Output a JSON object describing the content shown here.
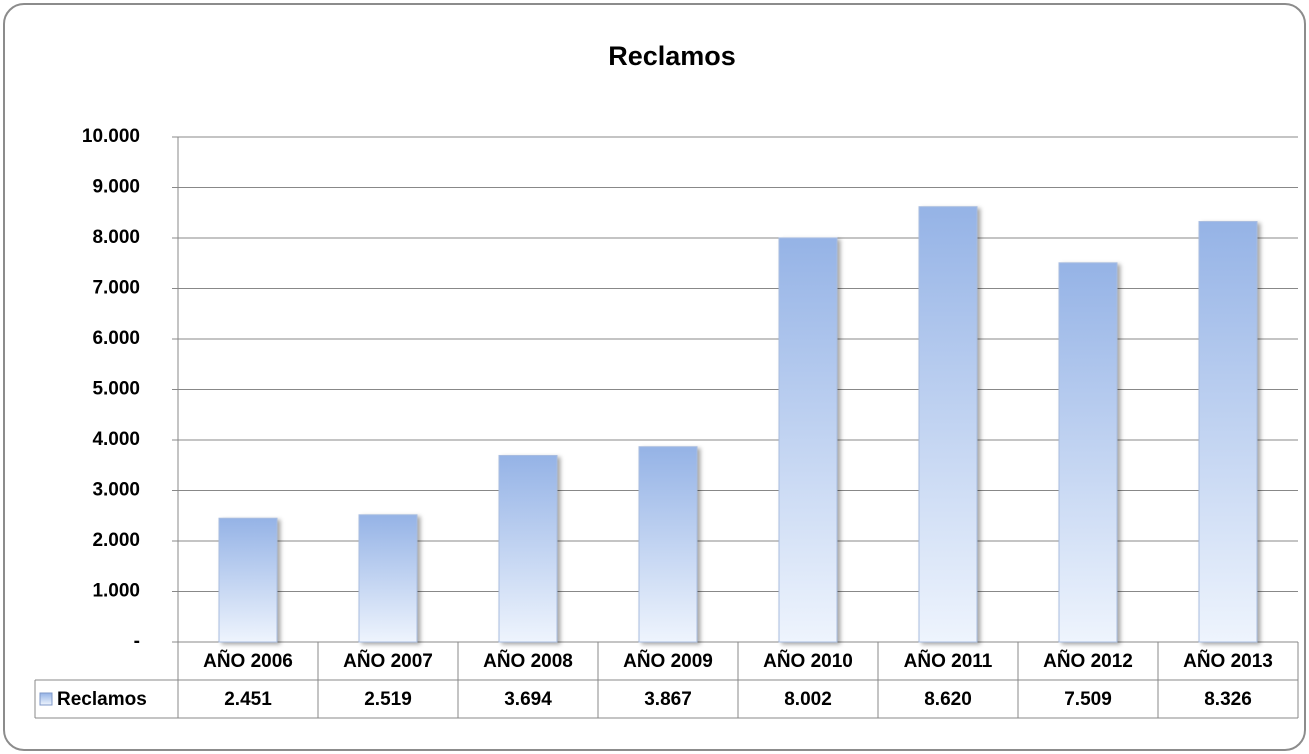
{
  "chart_data": {
    "type": "bar",
    "title": "Reclamos",
    "categories": [
      "AÑO 2006",
      "AÑO 2007",
      "AÑO 2008",
      "AÑO 2009",
      "AÑO 2010",
      "AÑO 2011",
      "AÑO 2012",
      "AÑO 2013"
    ],
    "series": [
      {
        "name": "Reclamos",
        "color": "#95b3e6",
        "values": [
          2451,
          2519,
          3694,
          3867,
          8002,
          8620,
          7509,
          8326
        ],
        "value_labels": [
          "2.451",
          "2.519",
          "3.694",
          "3.867",
          "8.002",
          "8.620",
          "7.509",
          "8.326"
        ]
      }
    ],
    "ylim": [
      0,
      10000
    ],
    "yticks": [
      {
        "value": 0,
        "label": "-"
      },
      {
        "value": 1000,
        "label": "1.000"
      },
      {
        "value": 2000,
        "label": "2.000"
      },
      {
        "value": 3000,
        "label": "3.000"
      },
      {
        "value": 4000,
        "label": "4.000"
      },
      {
        "value": 5000,
        "label": "5.000"
      },
      {
        "value": 6000,
        "label": "6.000"
      },
      {
        "value": 7000,
        "label": "7.000"
      },
      {
        "value": 8000,
        "label": "8.000"
      },
      {
        "value": 9000,
        "label": "9.000"
      },
      {
        "value": 10000,
        "label": "10.000"
      }
    ],
    "grid": true
  }
}
